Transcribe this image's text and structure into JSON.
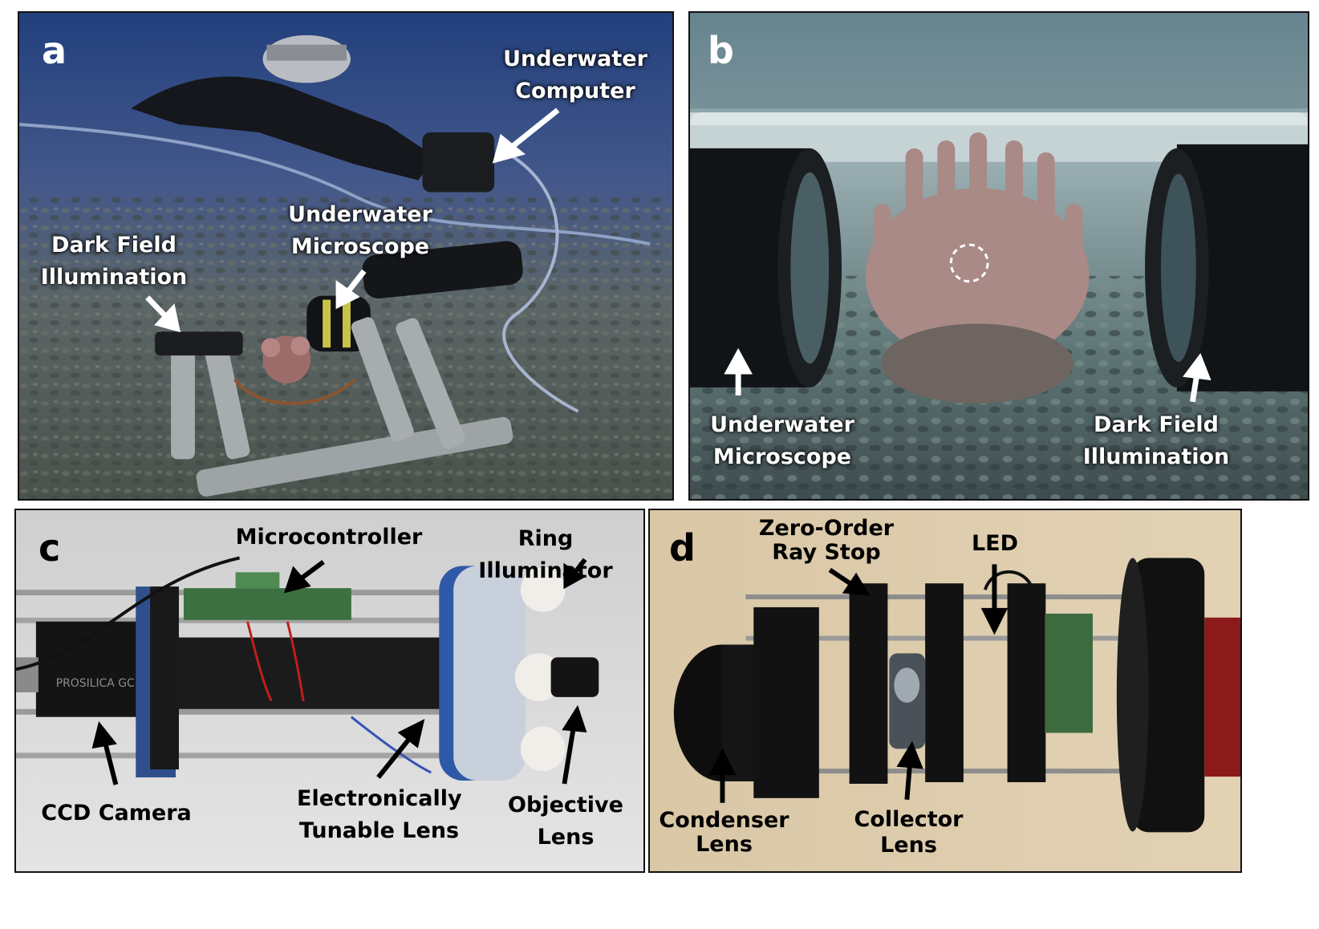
{
  "panels": {
    "a": {
      "letter": "a",
      "labels": {
        "underwater_computer": "Underwater\nComputer",
        "underwater_microscope": "Underwater\nMicroscope",
        "dark_field_illumination": "Dark Field\nIllumination"
      }
    },
    "b": {
      "letter": "b",
      "labels": {
        "underwater_microscope": "Underwater\nMicroscope",
        "dark_field_illumination": "Dark Field\nIllumination"
      }
    },
    "c": {
      "letter": "c",
      "labels": {
        "microcontroller": "Microcontroller",
        "ring_illuminator": "Ring Illuminator",
        "ccd_camera": "CCD Camera",
        "electronically_tunable_lens": "Electronically\nTunable Lens",
        "objective_lens": "Objective\nLens"
      },
      "camera_text": "PROSILICA GC"
    },
    "d": {
      "letter": "d",
      "labels": {
        "zero_order_ray_stop": "Zero-Order\nRay Stop",
        "led": "LED",
        "condenser_lens": "Condenser\nLens",
        "collector_lens": "Collector\nLens"
      }
    }
  },
  "colors": {
    "underwater_top": "#243f7a",
    "underwater_bottom": "#5d6a6c",
    "lab_background_c": "#d9d9d9",
    "lab_background_d": "#d8c6a5",
    "label_light": "#ffffff",
    "label_dark": "#000000"
  }
}
